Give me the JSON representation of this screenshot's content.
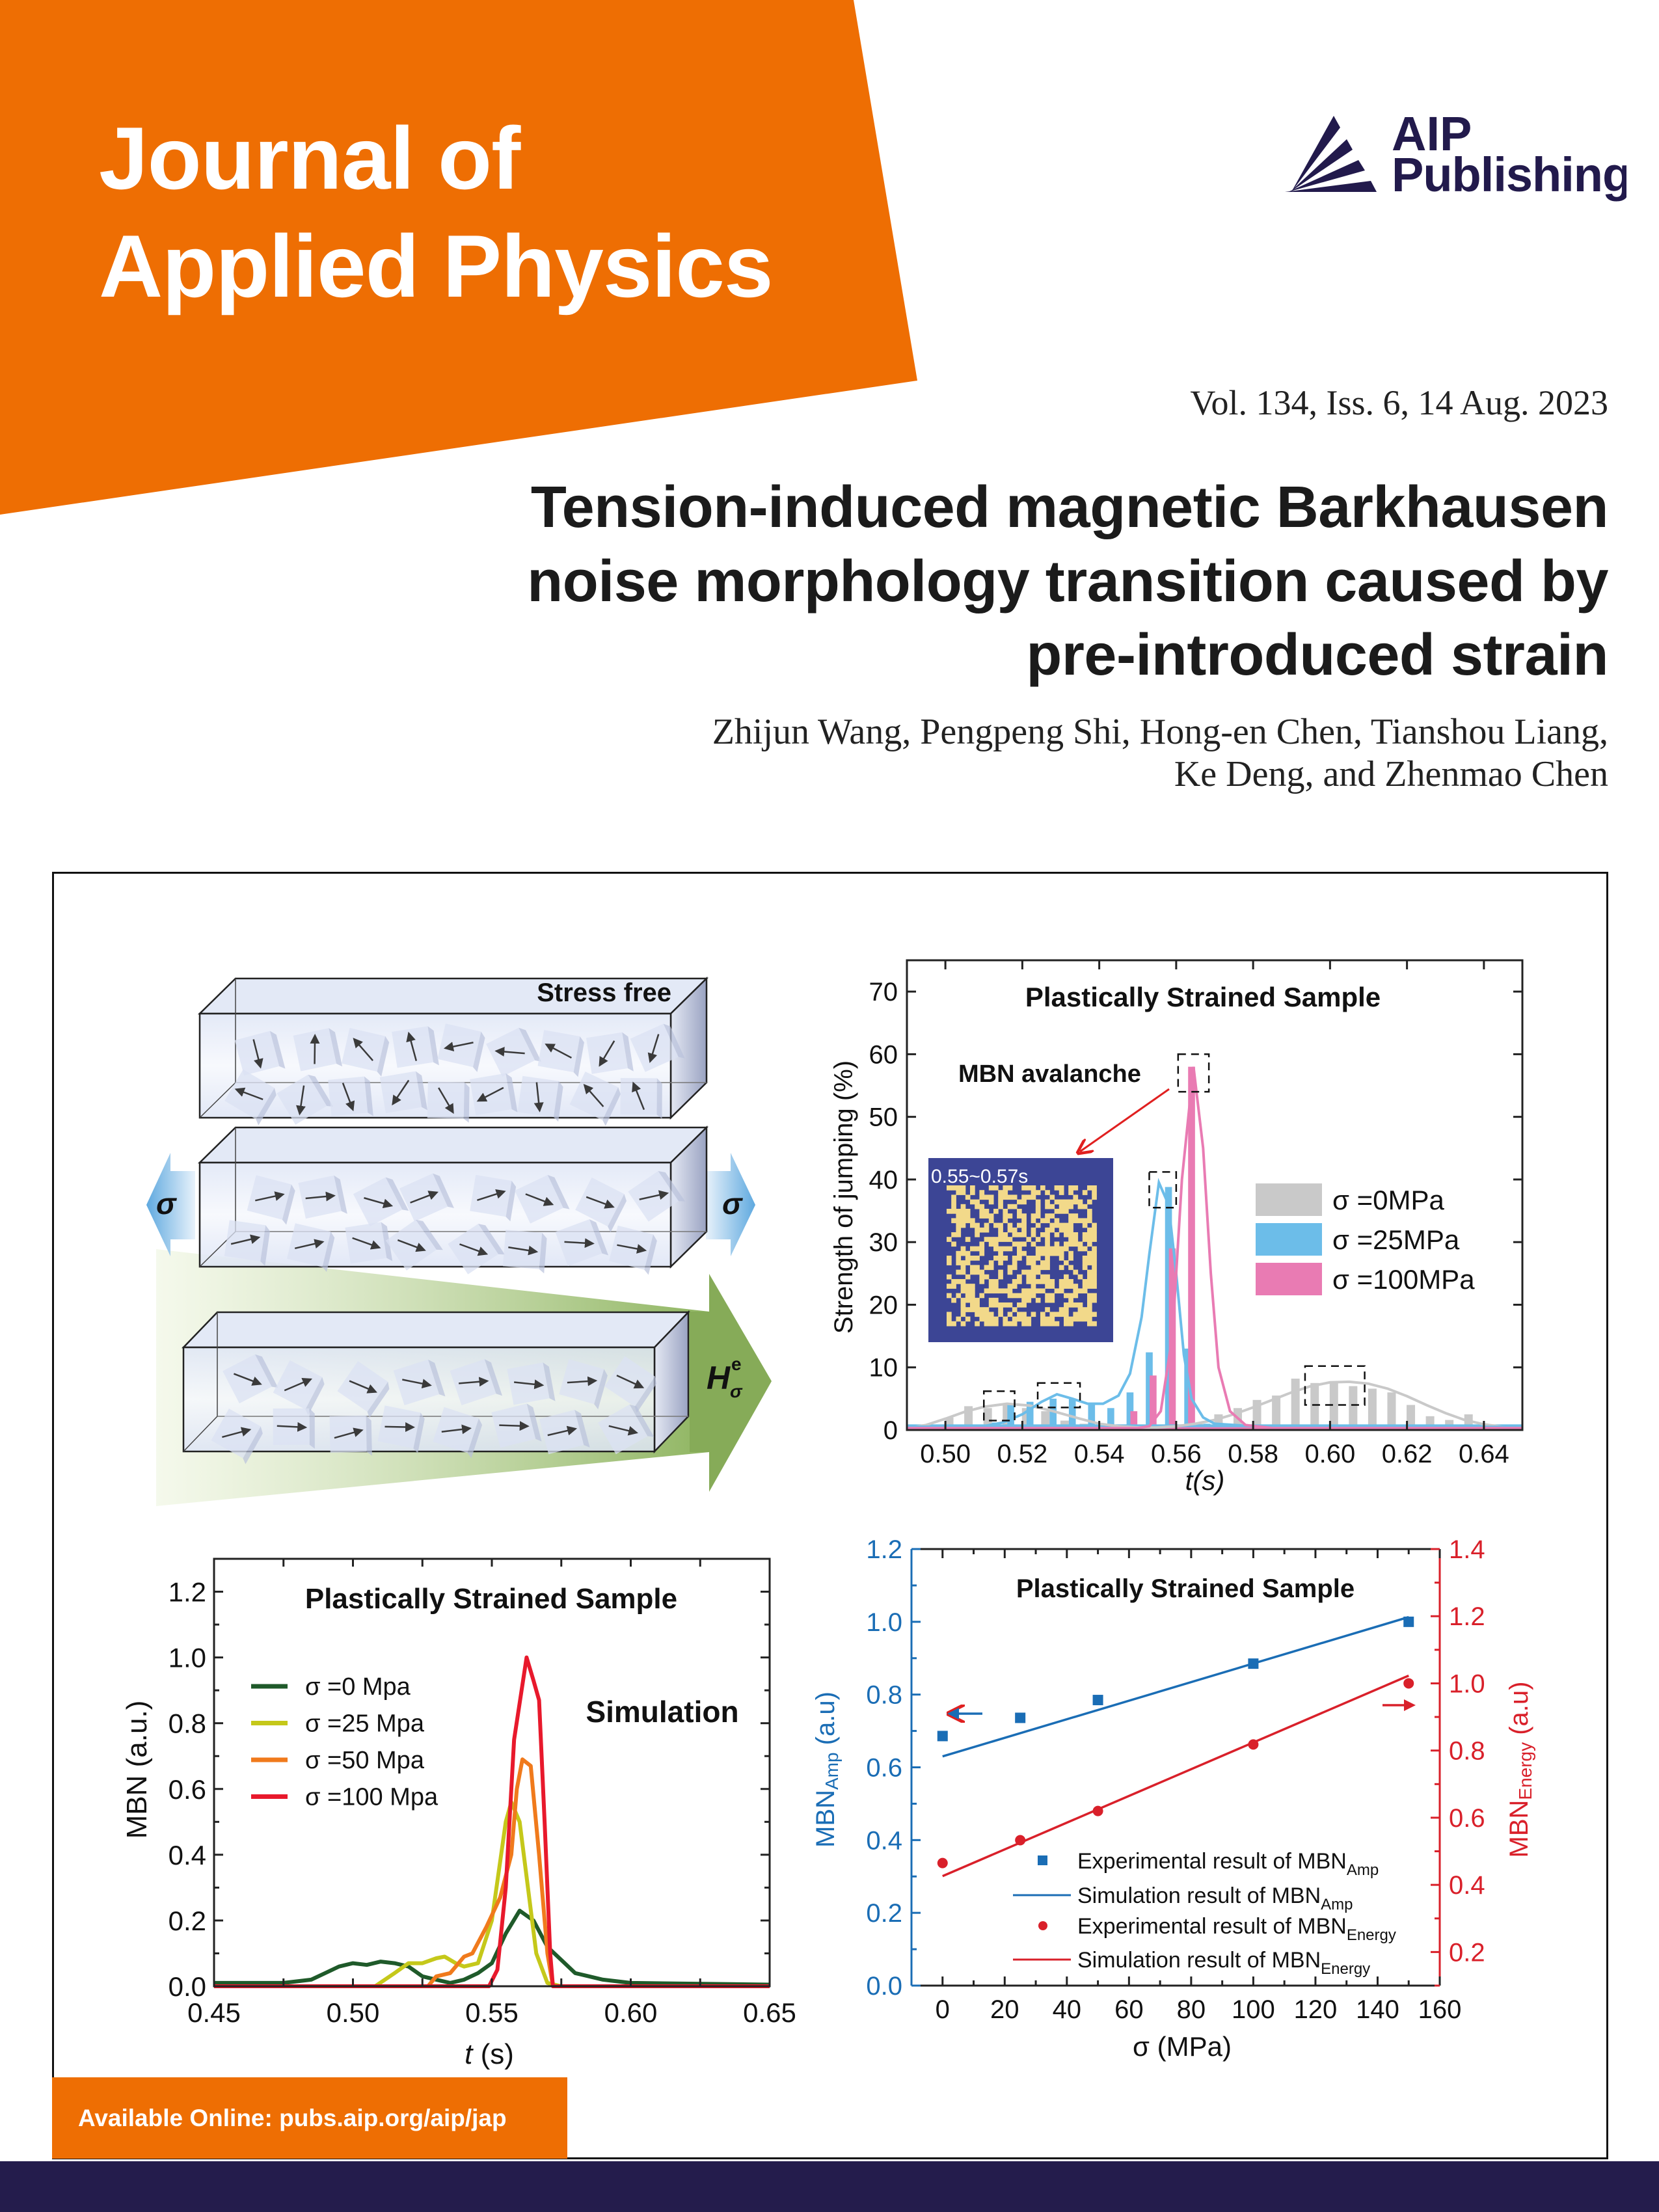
{
  "header": {
    "journal_title_line1": "Journal of",
    "journal_title_line2": "Applied Physics",
    "publisher_line1": "AIP",
    "publisher_line2": "Publishing",
    "issue": "Vol. 134, Iss. 6, 14 Aug. 2023",
    "brand_orange": "#ee6e03",
    "brand_navy": "#221a4c"
  },
  "article": {
    "title_lines": [
      "Tension-induced magnetic Barkhausen",
      "noise morphology transition caused by",
      "pre-introduced strain"
    ],
    "author_lines": [
      "Zhijun Wang, Pengpeng Shi, Hong-en Chen, Tianshou Liang,",
      "Ke Deng, and Zhenmao Chen"
    ]
  },
  "schematic": {
    "stress_free_label": "Stress free",
    "sigma_left": "σ",
    "sigma_right": "σ",
    "field_main": "H",
    "field_sup": "e",
    "field_sub": "σ"
  },
  "footer": {
    "available_online": "Available Online: pubs.aip.org/aip/jap"
  },
  "chart_data": [
    {
      "id": "jumping",
      "type": "bar",
      "title": "Plastically Strained Sample",
      "xlabel": "t(s)",
      "ylabel": "Strength of jumping (%)",
      "xlim": [
        0.49,
        0.65
      ],
      "ylim": [
        0,
        75
      ],
      "xticks": [
        "0.50",
        "0.52",
        "0.54",
        "0.56",
        "0.58",
        "0.60",
        "0.62",
        "0.64"
      ],
      "yticks": [
        "0",
        "10",
        "20",
        "30",
        "40",
        "50",
        "60",
        "70"
      ],
      "callout": "MBN avalanche",
      "inset_label": "0.55~0.57s",
      "legend_position": "right",
      "series": [
        {
          "name": "σ =0MPa",
          "color": "#c9c9c9",
          "bars": {
            "x": [
              0.501,
              0.506,
              0.511,
              0.516,
              0.521,
              0.526,
              0.531,
              0.536,
              0.541,
              0.546,
              0.551,
              0.556,
              0.561,
              0.566,
              0.571,
              0.576,
              0.581,
              0.586,
              0.591,
              0.596,
              0.601,
              0.606,
              0.611,
              0.616,
              0.621,
              0.626,
              0.631,
              0.636
            ],
            "y": [
              2,
              3.8,
              3.5,
              4,
              3.5,
              3,
              1.5,
              1,
              0.5,
              0.5,
              0.3,
              0.5,
              0.8,
              1,
              2.5,
              3.5,
              4.8,
              5.5,
              8.2,
              7.5,
              7.5,
              7,
              6.6,
              6,
              4,
              2.2,
              1.6,
              2.5
            ]
          },
          "curve": {
            "x": [
              0.49,
              0.495,
              0.5,
              0.505,
              0.51,
              0.516,
              0.522,
              0.528,
              0.535,
              0.54,
              0.545,
              0.55,
              0.555,
              0.56,
              0.565,
              0.57,
              0.575,
              0.58,
              0.585,
              0.59,
              0.595,
              0.6,
              0.605,
              0.61,
              0.615,
              0.62,
              0.625,
              0.63,
              0.635,
              0.64,
              0.645,
              0.65
            ],
            "y": [
              0.3,
              0.8,
              1.8,
              2.9,
              3.7,
              4.2,
              3.9,
              3.0,
              1.8,
              1.0,
              0.6,
              0.4,
              0.4,
              0.6,
              1.0,
              1.6,
              2.5,
              3.6,
              4.8,
              6.0,
              7.0,
              7.6,
              7.7,
              7.4,
              6.6,
              5.4,
              4.0,
              2.7,
              1.6,
              0.9,
              0.5,
              0.3
            ]
          }
        },
        {
          "name": "σ =25MPa",
          "color": "#6cbde9",
          "bars": {
            "x": [
              0.513,
              0.517,
              0.522,
              0.528,
              0.533,
              0.538,
              0.543,
              0.548,
              0.553,
              0.558,
              0.563,
              0.568
            ],
            "y": [
              1.2,
              4,
              4.5,
              5,
              5,
              4.2,
              3.5,
              6,
              12.4,
              38.8,
              13,
              1
            ]
          },
          "curve": {
            "x": [
              0.49,
              0.51,
              0.515,
              0.52,
              0.525,
              0.529,
              0.533,
              0.537,
              0.541,
              0.545,
              0.548,
              0.551,
              0.553,
              0.5555,
              0.558,
              0.56,
              0.562,
              0.564,
              0.567,
              0.57,
              0.58,
              0.65
            ],
            "y": [
              0.5,
              0.6,
              1.2,
              2.5,
              4.5,
              5.7,
              5.0,
              4.2,
              4.2,
              5.5,
              9,
              18,
              28,
              39.5,
              36,
              25,
              12,
              5,
              2,
              1,
              0.6,
              0.5
            ]
          }
        },
        {
          "name": "σ =100MPa",
          "color": "#e97bb3",
          "bars": {
            "x": [
              0.549,
              0.554,
              0.559,
              0.564
            ],
            "y": [
              3,
              8.7,
              29,
              58
            ]
          },
          "curve": {
            "x": [
              0.49,
              0.55,
              0.553,
              0.556,
              0.559,
              0.5615,
              0.5645,
              0.567,
              0.569,
              0.571,
              0.574,
              0.578,
              0.585,
              0.65
            ],
            "y": [
              0.3,
              0.3,
              0.6,
              3,
              15,
              40,
              58,
              45,
              25,
              10,
              3,
              0.8,
              0.3,
              0.3
            ]
          }
        }
      ]
    },
    {
      "id": "simulation",
      "type": "line",
      "title": "Plastically Strained Sample",
      "annotation": "Simulation",
      "xlabel_italic": "t",
      "xlabel_unit": " (s)",
      "ylabel": "MBN (a.u.)",
      "xlim": [
        0.45,
        0.65
      ],
      "ylim": [
        0,
        1.3
      ],
      "xticks": [
        "0.45",
        "0.50",
        "0.55",
        "0.60",
        "0.65"
      ],
      "yticks": [
        "0.0",
        "0.2",
        "0.4",
        "0.6",
        "0.8",
        "1.0",
        "1.2"
      ],
      "legend_position": "top-left",
      "series": [
        {
          "name": "σ =0 Mpa",
          "color": "#1f5a2a",
          "x": [
            0.45,
            0.475,
            0.485,
            0.49,
            0.495,
            0.5,
            0.505,
            0.51,
            0.515,
            0.52,
            0.525,
            0.53,
            0.535,
            0.54,
            0.545,
            0.55,
            0.555,
            0.56,
            0.565,
            0.57,
            0.575,
            0.58,
            0.585,
            0.59,
            0.6,
            0.65
          ],
          "y": [
            0.01,
            0.01,
            0.02,
            0.04,
            0.06,
            0.07,
            0.065,
            0.075,
            0.07,
            0.06,
            0.03,
            0.02,
            0.01,
            0.02,
            0.04,
            0.07,
            0.16,
            0.23,
            0.2,
            0.12,
            0.08,
            0.04,
            0.03,
            0.02,
            0.01,
            0.005
          ]
        },
        {
          "name": "σ =25 Mpa",
          "color": "#c5c81a",
          "x": [
            0.508,
            0.515,
            0.52,
            0.525,
            0.53,
            0.533,
            0.537,
            0.54,
            0.545,
            0.55,
            0.555,
            0.557,
            0.56,
            0.563,
            0.566,
            0.57,
            0.575
          ],
          "y": [
            0,
            0.04,
            0.07,
            0.07,
            0.085,
            0.09,
            0.07,
            0.06,
            0.07,
            0.2,
            0.5,
            0.56,
            0.5,
            0.3,
            0.1,
            0.01,
            0
          ]
        },
        {
          "name": "σ =50 Mpa",
          "color": "#f07a1c",
          "x": [
            0.527,
            0.53,
            0.535,
            0.54,
            0.543,
            0.548,
            0.553,
            0.557,
            0.559,
            0.561,
            0.564,
            0.567,
            0.57,
            0.572
          ],
          "y": [
            0,
            0.03,
            0.04,
            0.09,
            0.1,
            0.18,
            0.27,
            0.4,
            0.6,
            0.69,
            0.67,
            0.4,
            0.1,
            0
          ]
        },
        {
          "name": "σ =100 Mpa",
          "color": "#e8192c",
          "x": [
            0.45,
            0.549,
            0.552,
            0.555,
            0.558,
            0.5625,
            0.565,
            0.567,
            0.569,
            0.571,
            0.572,
            0.65
          ],
          "y": [
            0,
            0,
            0.05,
            0.3,
            0.75,
            1.0,
            0.93,
            0.87,
            0.5,
            0.1,
            0,
            0
          ]
        }
      ]
    },
    {
      "id": "amp-energy",
      "type": "scatter",
      "title": "Plastically Strained Sample",
      "xlabel": "σ (MPa)",
      "ylabel_left": {
        "main": "MBN",
        "sub": "Amp",
        "tail": " (a.u)",
        "color": "#1a6db5"
      },
      "ylabel_right": {
        "main": "MBN",
        "sub": "Energy",
        "tail": " (a.u)",
        "color": "#d9202a"
      },
      "xlim": [
        -10,
        160
      ],
      "ylim_left": [
        0,
        1.2
      ],
      "ylim_right": [
        0.1,
        1.4
      ],
      "xticks": [
        "0",
        "20",
        "40",
        "60",
        "80",
        "100",
        "120",
        "140",
        "160"
      ],
      "yticks_left": [
        "0.0",
        "0.2",
        "0.4",
        "0.6",
        "0.8",
        "1.0",
        "1.2"
      ],
      "yticks_right": [
        "0.2",
        "0.4",
        "0.6",
        "0.8",
        "1.0",
        "1.2",
        "1.4"
      ],
      "legend_position": "bottom-right",
      "series": [
        {
          "name_main": "Experimental result of MBN",
          "name_sub": "Amp",
          "kind": "square",
          "axis": "left",
          "color": "#1a6db5",
          "x": [
            0,
            25,
            50,
            100,
            150
          ],
          "y": [
            0.686,
            0.736,
            0.785,
            0.885,
            1.0
          ]
        },
        {
          "name_main": "Simulation result of MBN",
          "name_sub": "Amp",
          "kind": "line",
          "axis": "left",
          "color": "#1a6db5",
          "x": [
            0,
            150
          ],
          "y": [
            0.63,
            1.013
          ]
        },
        {
          "name_main": "Experimental result of MBN",
          "name_sub": "Energy",
          "kind": "circle",
          "axis": "right",
          "color": "#d9202a",
          "x": [
            0,
            25,
            50,
            100,
            150
          ],
          "y": [
            0.465,
            0.533,
            0.62,
            0.818,
            1.0
          ]
        },
        {
          "name_main": "Simulation result of MBN",
          "name_sub": "Energy",
          "kind": "line",
          "axis": "right",
          "color": "#d9202a",
          "x": [
            0,
            150
          ],
          "y": [
            0.426,
            1.023
          ]
        }
      ]
    }
  ]
}
